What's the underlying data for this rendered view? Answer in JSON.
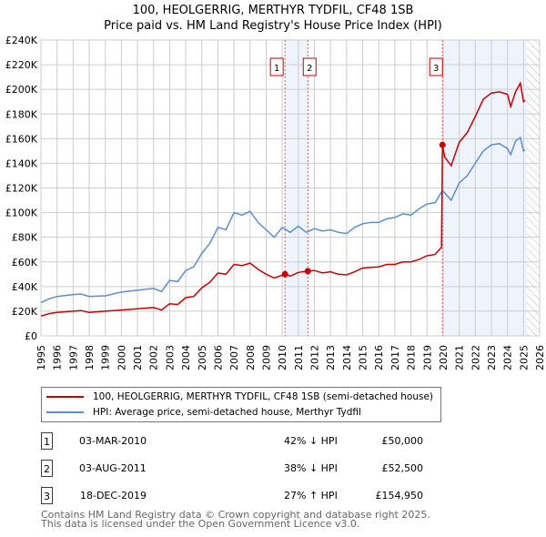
{
  "title_line1": "100, HEOLGERRIG, MERTHYR TYDFIL, CF48 1SB",
  "title_line2": "Price paid vs. HM Land Registry's House Price Index (HPI)",
  "chart_data": {
    "type": "line",
    "title": "Price paid vs. HM Land Registry's House Price Index (HPI)",
    "xlim": [
      1995,
      2026
    ],
    "ylim": [
      0,
      240000
    ],
    "x_ticks": [
      "1995",
      "1996",
      "1997",
      "1998",
      "1999",
      "2000",
      "2001",
      "2002",
      "2003",
      "2004",
      "2005",
      "2006",
      "2007",
      "2008",
      "2009",
      "2010",
      "2011",
      "2012",
      "2013",
      "2014",
      "2015",
      "2016",
      "2017",
      "2018",
      "2019",
      "2020",
      "2021",
      "2022",
      "2023",
      "2024",
      "2025",
      "2026"
    ],
    "y_ticks": [
      "£0",
      "£20K",
      "£40K",
      "£60K",
      "£80K",
      "£100K",
      "£120K",
      "£140K",
      "£160K",
      "£180K",
      "£200K",
      "£220K",
      "£240K"
    ],
    "grid": true,
    "series": [
      {
        "name": "100, HEOLGERRIG, MERTHYR TYDFIL, CF48 1SB (semi-detached house)",
        "color": "#cc0000",
        "x": [
          1995,
          1995.5,
          1996,
          1997,
          1997.5,
          1998,
          1999,
          2000,
          2001,
          2002,
          2002.5,
          2003,
          2003.5,
          2004,
          2004.5,
          2005,
          2005.5,
          2006,
          2006.5,
          2007,
          2007.5,
          2008,
          2008.5,
          2009,
          2009.5,
          2010.17,
          2010.5,
          2011,
          2011.59,
          2012,
          2012.5,
          2013,
          2013.5,
          2014,
          2014.5,
          2015,
          2015.5,
          2016,
          2016.5,
          2017,
          2017.5,
          2018,
          2018.5,
          2019,
          2019.5,
          2019.9,
          2019.96,
          2020.1,
          2020.5,
          2021,
          2021.5,
          2022,
          2022.5,
          2023,
          2023.5,
          2024,
          2024.2,
          2024.5,
          2024.8,
          2025,
          2025.1
        ],
        "y": [
          16000,
          18000,
          19000,
          20000,
          20500,
          19000,
          20000,
          21000,
          22000,
          23000,
          21000,
          26000,
          25500,
          31000,
          32000,
          39000,
          43500,
          51000,
          50000,
          58000,
          57000,
          59000,
          54000,
          50000,
          47000,
          50000,
          48500,
          51500,
          52500,
          53000,
          51000,
          52000,
          50000,
          49500,
          52000,
          55000,
          55500,
          56000,
          58000,
          58000,
          60000,
          60000,
          62000,
          65000,
          66000,
          72000,
          154950,
          145000,
          138000,
          157000,
          165000,
          178000,
          192000,
          197000,
          198000,
          196000,
          186000,
          198000,
          205000,
          190000,
          191000
        ]
      },
      {
        "name": "HPI: Average price, semi-detached house, Merthyr Tydfil",
        "color": "#5b8fd4",
        "x": [
          1995,
          1995.5,
          1996,
          1997,
          1997.5,
          1998,
          1999,
          2000,
          2001,
          2002,
          2002.5,
          2003,
          2003.5,
          2004,
          2004.5,
          2005,
          2005.5,
          2006,
          2006.5,
          2007,
          2007.5,
          2008,
          2008.5,
          2009,
          2009.5,
          2010,
          2010.5,
          2011,
          2011.5,
          2012,
          2012.5,
          2013,
          2013.5,
          2014,
          2014.5,
          2015,
          2015.5,
          2016,
          2016.5,
          2017,
          2017.5,
          2018,
          2018.5,
          2019,
          2019.5,
          2019.96,
          2020.5,
          2021,
          2021.5,
          2022,
          2022.5,
          2023,
          2023.5,
          2024,
          2024.2,
          2024.5,
          2024.8,
          2025,
          2025.1
        ],
        "y": [
          27000,
          30000,
          32000,
          33500,
          34000,
          32000,
          32500,
          35500,
          37000,
          38500,
          36000,
          45000,
          44000,
          53000,
          56000,
          67000,
          75000,
          88000,
          86000,
          100000,
          98000,
          101000,
          92000,
          86000,
          80000,
          88000,
          84000,
          89000,
          84000,
          87000,
          85000,
          86000,
          84000,
          83000,
          88000,
          91000,
          92000,
          92000,
          95000,
          96000,
          99000,
          98000,
          103000,
          107000,
          108000,
          118000,
          110000,
          124000,
          130000,
          140000,
          150000,
          155000,
          156000,
          152000,
          147000,
          158000,
          161000,
          150000,
          151000
        ]
      }
    ],
    "sales": [
      {
        "label": "1",
        "x": 2010.17,
        "price": 50000
      },
      {
        "label": "2",
        "x": 2011.59,
        "price": 52500
      },
      {
        "label": "3",
        "x": 2019.96,
        "price": 154950
      }
    ],
    "legend_placement": "bottom"
  },
  "legend": {
    "red_label": "100, HEOLGERRIG, MERTHYR TYDFIL, CF48 1SB (semi-detached house)",
    "blue_label": "HPI: Average price, semi-detached house, Merthyr Tydfil"
  },
  "transactions": [
    {
      "num": "1",
      "date": "03-MAR-2010",
      "price": "£50,000",
      "hpi": "42% ↓ HPI"
    },
    {
      "num": "2",
      "date": "03-AUG-2011",
      "price": "£52,500",
      "hpi": "38% ↓ HPI"
    },
    {
      "num": "3",
      "date": "18-DEC-2019",
      "price": "£154,950",
      "hpi": "27% ↑ HPI"
    }
  ],
  "footer": {
    "line1": "Contains HM Land Registry data © Crown copyright and database right 2025.",
    "line2": "This data is licensed under the Open Government Licence v3.0."
  }
}
